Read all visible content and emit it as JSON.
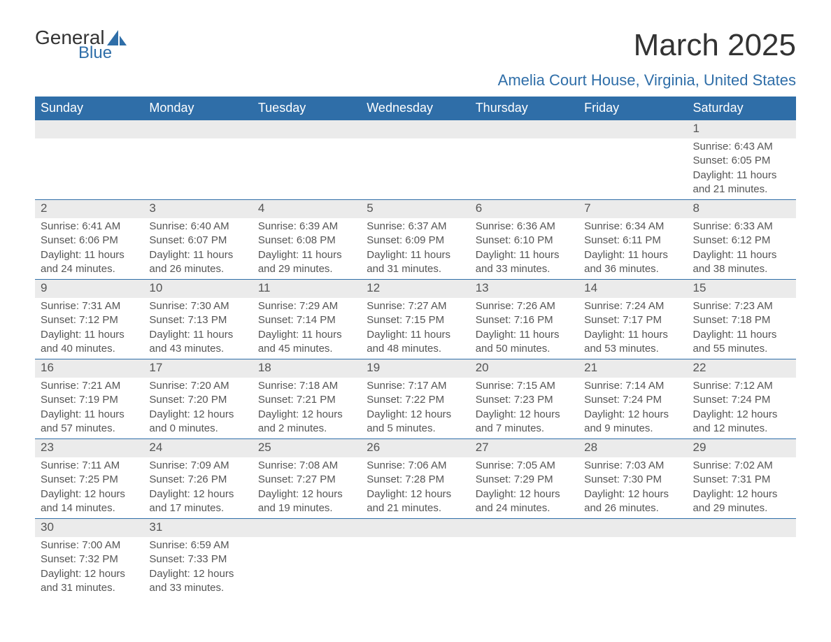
{
  "logo": {
    "line1": "General",
    "line2": "Blue"
  },
  "title": "March 2025",
  "location": "Amelia Court House, Virginia, United States",
  "colors": {
    "header_bg": "#2f6ea8",
    "header_fg": "#ffffff",
    "daynum_bg": "#ebebeb",
    "row_border": "#2f6ea8",
    "text": "#555555",
    "accent": "#2f6ea8"
  },
  "typography": {
    "title_fontsize": 44,
    "location_fontsize": 22,
    "dayhead_fontsize": 18,
    "cell_fontsize": 15
  },
  "daysOfWeek": [
    "Sunday",
    "Monday",
    "Tuesday",
    "Wednesday",
    "Thursday",
    "Friday",
    "Saturday"
  ],
  "weeks": [
    [
      null,
      null,
      null,
      null,
      null,
      null,
      {
        "n": "1",
        "sunrise": "6:43 AM",
        "sunset": "6:05 PM",
        "dl_h": "11",
        "dl_m": "21"
      }
    ],
    [
      {
        "n": "2",
        "sunrise": "6:41 AM",
        "sunset": "6:06 PM",
        "dl_h": "11",
        "dl_m": "24"
      },
      {
        "n": "3",
        "sunrise": "6:40 AM",
        "sunset": "6:07 PM",
        "dl_h": "11",
        "dl_m": "26"
      },
      {
        "n": "4",
        "sunrise": "6:39 AM",
        "sunset": "6:08 PM",
        "dl_h": "11",
        "dl_m": "29"
      },
      {
        "n": "5",
        "sunrise": "6:37 AM",
        "sunset": "6:09 PM",
        "dl_h": "11",
        "dl_m": "31"
      },
      {
        "n": "6",
        "sunrise": "6:36 AM",
        "sunset": "6:10 PM",
        "dl_h": "11",
        "dl_m": "33"
      },
      {
        "n": "7",
        "sunrise": "6:34 AM",
        "sunset": "6:11 PM",
        "dl_h": "11",
        "dl_m": "36"
      },
      {
        "n": "8",
        "sunrise": "6:33 AM",
        "sunset": "6:12 PM",
        "dl_h": "11",
        "dl_m": "38"
      }
    ],
    [
      {
        "n": "9",
        "sunrise": "7:31 AM",
        "sunset": "7:12 PM",
        "dl_h": "11",
        "dl_m": "40"
      },
      {
        "n": "10",
        "sunrise": "7:30 AM",
        "sunset": "7:13 PM",
        "dl_h": "11",
        "dl_m": "43"
      },
      {
        "n": "11",
        "sunrise": "7:29 AM",
        "sunset": "7:14 PM",
        "dl_h": "11",
        "dl_m": "45"
      },
      {
        "n": "12",
        "sunrise": "7:27 AM",
        "sunset": "7:15 PM",
        "dl_h": "11",
        "dl_m": "48"
      },
      {
        "n": "13",
        "sunrise": "7:26 AM",
        "sunset": "7:16 PM",
        "dl_h": "11",
        "dl_m": "50"
      },
      {
        "n": "14",
        "sunrise": "7:24 AM",
        "sunset": "7:17 PM",
        "dl_h": "11",
        "dl_m": "53"
      },
      {
        "n": "15",
        "sunrise": "7:23 AM",
        "sunset": "7:18 PM",
        "dl_h": "11",
        "dl_m": "55"
      }
    ],
    [
      {
        "n": "16",
        "sunrise": "7:21 AM",
        "sunset": "7:19 PM",
        "dl_h": "11",
        "dl_m": "57"
      },
      {
        "n": "17",
        "sunrise": "7:20 AM",
        "sunset": "7:20 PM",
        "dl_h": "12",
        "dl_m": "0"
      },
      {
        "n": "18",
        "sunrise": "7:18 AM",
        "sunset": "7:21 PM",
        "dl_h": "12",
        "dl_m": "2"
      },
      {
        "n": "19",
        "sunrise": "7:17 AM",
        "sunset": "7:22 PM",
        "dl_h": "12",
        "dl_m": "5"
      },
      {
        "n": "20",
        "sunrise": "7:15 AM",
        "sunset": "7:23 PM",
        "dl_h": "12",
        "dl_m": "7"
      },
      {
        "n": "21",
        "sunrise": "7:14 AM",
        "sunset": "7:24 PM",
        "dl_h": "12",
        "dl_m": "9"
      },
      {
        "n": "22",
        "sunrise": "7:12 AM",
        "sunset": "7:24 PM",
        "dl_h": "12",
        "dl_m": "12"
      }
    ],
    [
      {
        "n": "23",
        "sunrise": "7:11 AM",
        "sunset": "7:25 PM",
        "dl_h": "12",
        "dl_m": "14"
      },
      {
        "n": "24",
        "sunrise": "7:09 AM",
        "sunset": "7:26 PM",
        "dl_h": "12",
        "dl_m": "17"
      },
      {
        "n": "25",
        "sunrise": "7:08 AM",
        "sunset": "7:27 PM",
        "dl_h": "12",
        "dl_m": "19"
      },
      {
        "n": "26",
        "sunrise": "7:06 AM",
        "sunset": "7:28 PM",
        "dl_h": "12",
        "dl_m": "21"
      },
      {
        "n": "27",
        "sunrise": "7:05 AM",
        "sunset": "7:29 PM",
        "dl_h": "12",
        "dl_m": "24"
      },
      {
        "n": "28",
        "sunrise": "7:03 AM",
        "sunset": "7:30 PM",
        "dl_h": "12",
        "dl_m": "26"
      },
      {
        "n": "29",
        "sunrise": "7:02 AM",
        "sunset": "7:31 PM",
        "dl_h": "12",
        "dl_m": "29"
      }
    ],
    [
      {
        "n": "30",
        "sunrise": "7:00 AM",
        "sunset": "7:32 PM",
        "dl_h": "12",
        "dl_m": "31"
      },
      {
        "n": "31",
        "sunrise": "6:59 AM",
        "sunset": "7:33 PM",
        "dl_h": "12",
        "dl_m": "33"
      },
      null,
      null,
      null,
      null,
      null
    ]
  ],
  "labels": {
    "sunrise": "Sunrise:",
    "sunset": "Sunset:",
    "daylight_prefix": "Daylight:",
    "hours_word": "hours",
    "and_word": "and",
    "minutes_word": "minutes."
  }
}
